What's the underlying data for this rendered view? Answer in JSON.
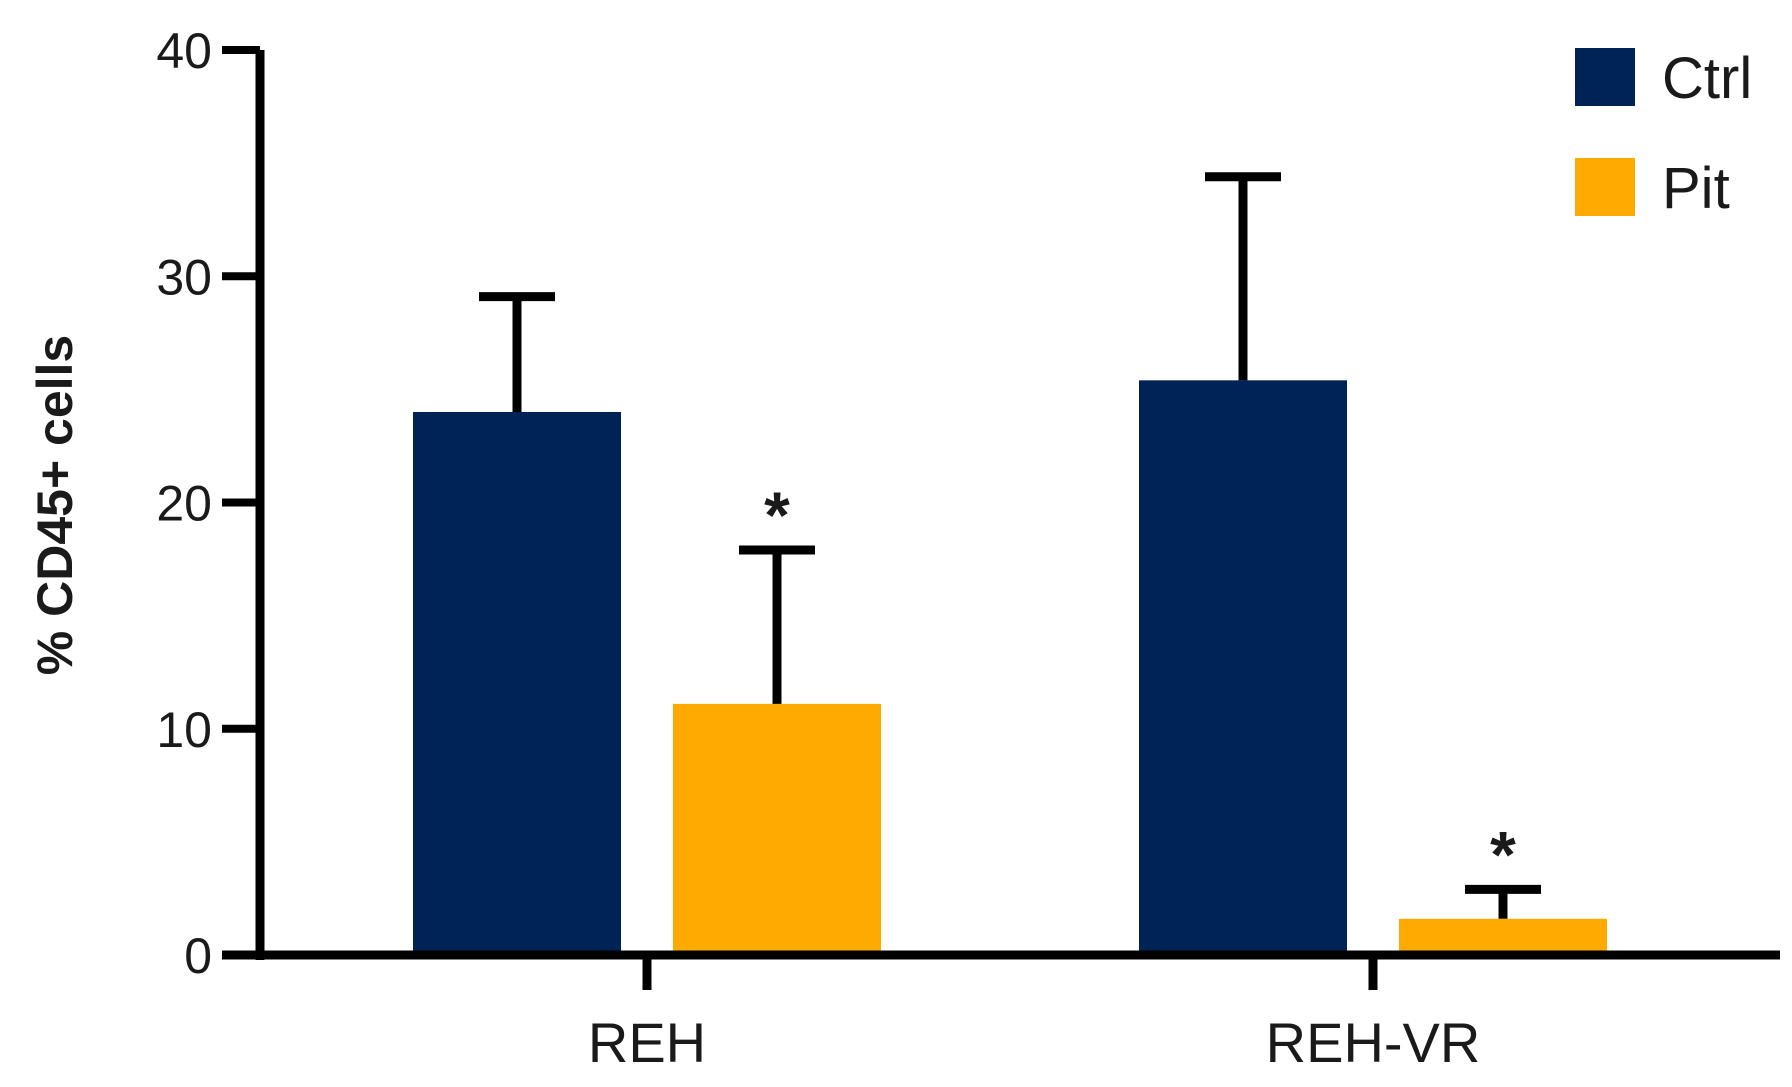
{
  "chart_data": {
    "type": "bar",
    "title": "",
    "xlabel": "",
    "ylabel": "% CD45+ cells",
    "ylim": [
      0,
      40
    ],
    "yticks": [
      "0",
      "10",
      "20",
      "30",
      "40"
    ],
    "categories": [
      "REH",
      "REH-VR"
    ],
    "series": [
      {
        "name": "Ctrl",
        "color": "#002357",
        "values": [
          24.0,
          25.4
        ],
        "error": [
          5.1,
          9.0
        ],
        "significance": [
          "",
          ""
        ]
      },
      {
        "name": "Pit",
        "color": "#FFAA00",
        "values": [
          11.1,
          1.6
        ],
        "error": [
          6.8,
          1.3
        ],
        "significance": [
          "*",
          "*"
        ]
      }
    ],
    "legend": "top-right",
    "grid": false
  }
}
